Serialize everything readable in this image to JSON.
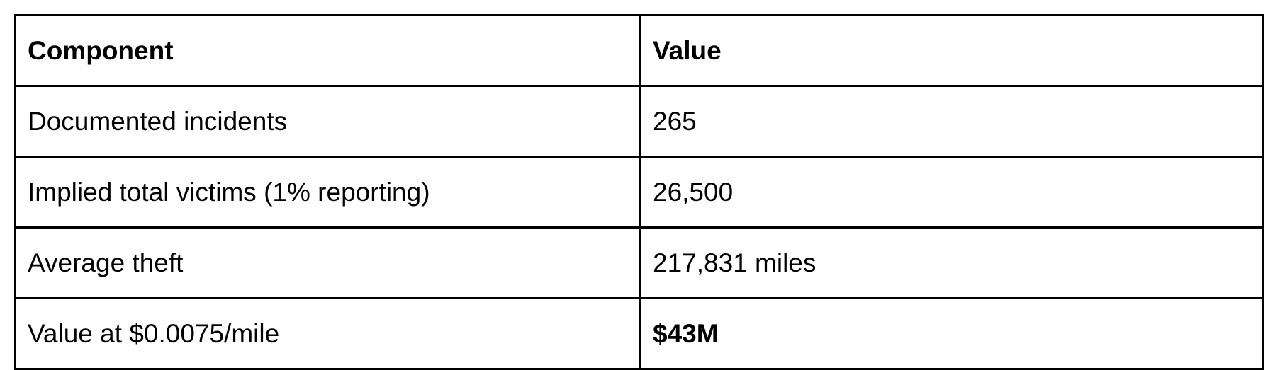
{
  "table": {
    "header": [
      "Component",
      "Value"
    ],
    "rows": [
      [
        "Documented incidents",
        "265"
      ],
      [
        "Implied total victims (1% reporting)",
        "26,500"
      ],
      [
        "Average theft",
        "217,831 miles"
      ],
      [
        "Value at $0.0075/mile",
        "$43M"
      ]
    ]
  }
}
